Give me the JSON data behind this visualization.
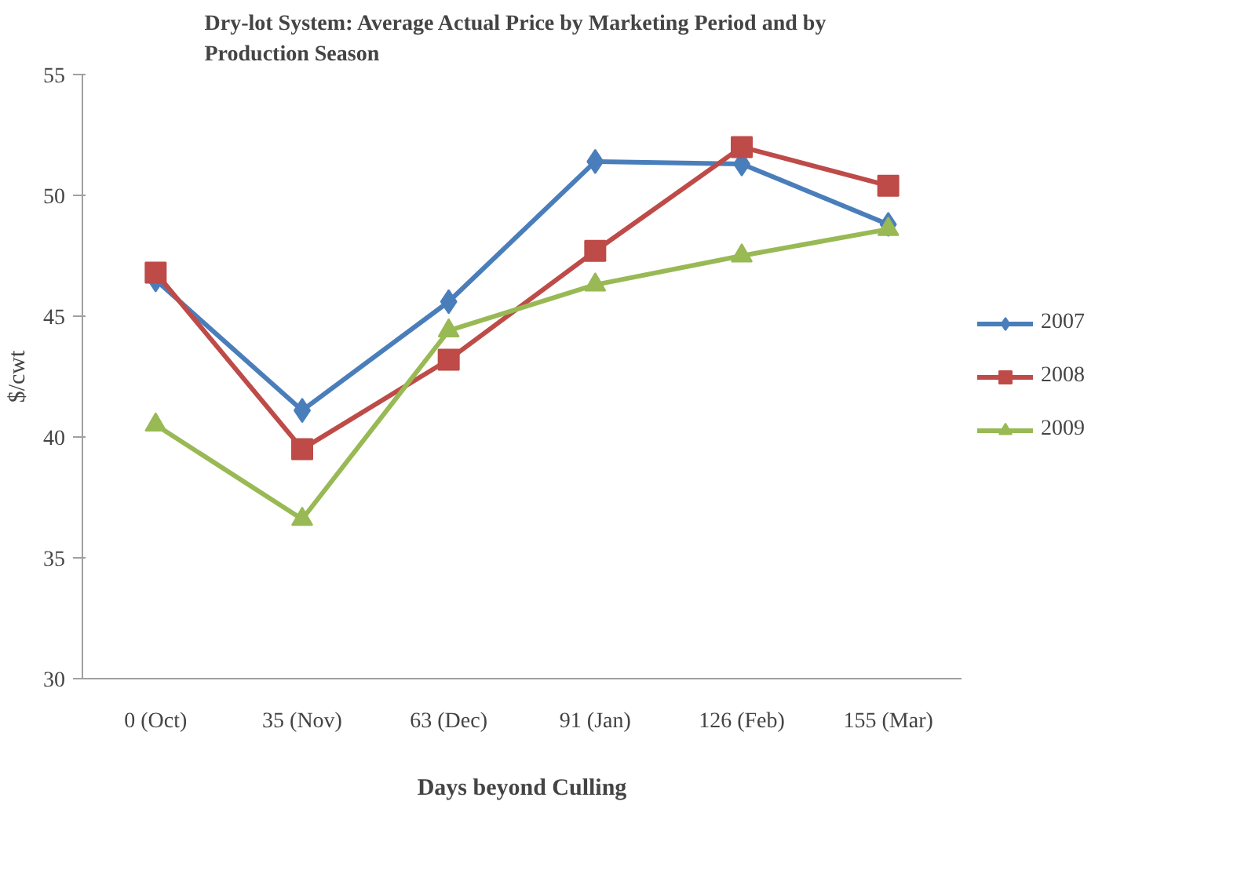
{
  "chart_data": {
    "type": "line",
    "title": "Dry-lot System:  Average Actual Price by Marketing Period  and by Production Season",
    "xlabel": "Days beyond Culling",
    "ylabel": "$/cwt",
    "categories": [
      "0 (Oct)",
      "35 (Nov)",
      "63 (Dec)",
      "91 (Jan)",
      "126 (Feb)",
      "155 (Mar)"
    ],
    "series": [
      {
        "name": "2007",
        "color": "#4a7ebb",
        "marker": "diamond",
        "values": [
          46.5,
          41.1,
          45.6,
          51.4,
          51.3,
          48.8
        ]
      },
      {
        "name": "2008",
        "color": "#be4b48",
        "marker": "square",
        "values": [
          46.8,
          39.5,
          43.2,
          47.7,
          52.0,
          50.4
        ]
      },
      {
        "name": "2009",
        "color": "#98b954",
        "marker": "triangle",
        "values": [
          40.5,
          36.6,
          44.4,
          46.3,
          47.5,
          48.6
        ]
      }
    ],
    "ylim": [
      30,
      55
    ],
    "yticks": [
      30,
      35,
      40,
      45,
      50,
      55
    ],
    "grid": false,
    "legend": "right"
  }
}
